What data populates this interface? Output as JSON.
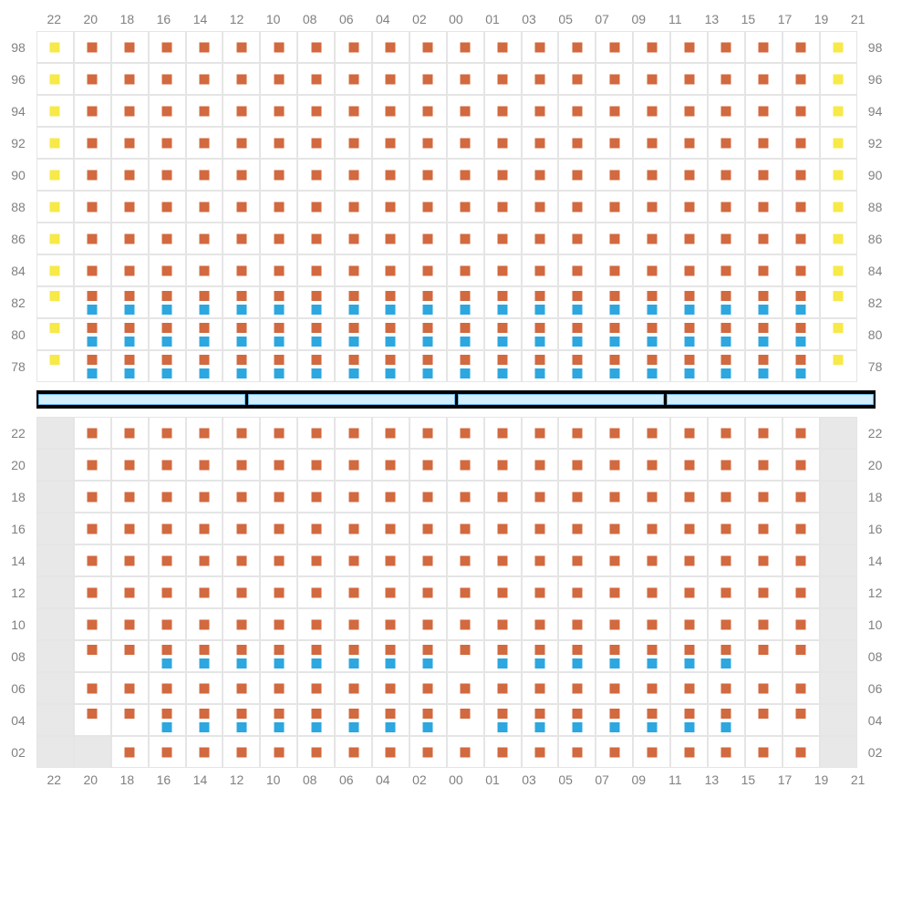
{
  "colors": {
    "orange": "#d2693f",
    "yellow": "#f7e948",
    "blue": "#2ca7e0",
    "grid_line": "#e5e5e5",
    "label": "#808080",
    "divider_bg": "#000000",
    "divider_seg_fill": "#d3edfb",
    "divider_seg_border": "#6db9e8",
    "grey_cell": "#e8e8e8",
    "background": "#ffffff"
  },
  "font_size": 14,
  "col_labels": [
    "22",
    "20",
    "18",
    "16",
    "14",
    "12",
    "10",
    "08",
    "06",
    "04",
    "02",
    "00",
    "01",
    "03",
    "05",
    "07",
    "09",
    "11",
    "13",
    "15",
    "17",
    "19",
    "21"
  ],
  "divider_segments": 4,
  "upper": {
    "row_labels": [
      "98",
      "96",
      "94",
      "92",
      "90",
      "88",
      "86",
      "84",
      "82",
      "80",
      "78"
    ],
    "cells": {
      "comment": "markers[row][col] = array of {pos, color}. pos: t=top-center, c=center, b=bottom-center (center approximated to top region). color: o=orange, y=yellow, b=blue",
      "default_rows_0_to_7": {
        "pattern": "col0=yellow, col1-19=orange, col20=blank, col21=yellow; last col varies"
      }
    }
  },
  "lower": {
    "row_labels": [
      "22",
      "20",
      "18",
      "16",
      "14",
      "12",
      "10",
      "08",
      "06",
      "04",
      "02"
    ]
  }
}
